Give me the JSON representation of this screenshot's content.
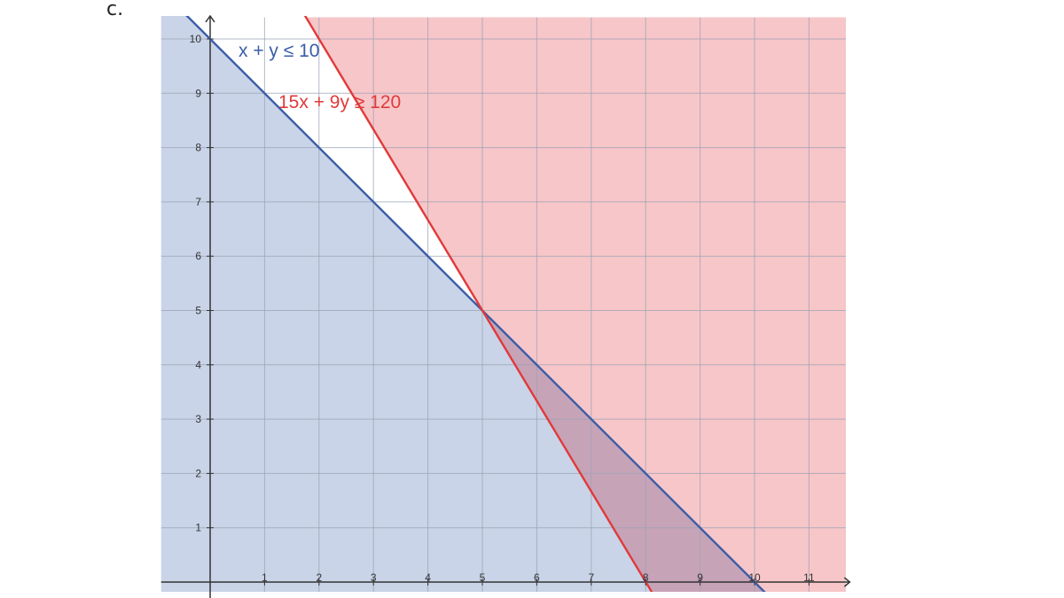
{
  "part_label": "c.",
  "chart_data": {
    "type": "line",
    "title": "",
    "xlabel": "",
    "ylabel": "",
    "xlim": [
      -0.9,
      11.7
    ],
    "ylim": [
      -0.2,
      10.4
    ],
    "x_ticks": [
      1,
      2,
      3,
      4,
      5,
      6,
      7,
      8,
      9,
      10,
      11
    ],
    "y_ticks": [
      1,
      2,
      3,
      4,
      5,
      6,
      7,
      8,
      9,
      10
    ],
    "grid": true,
    "series": [
      {
        "name": "x + y ≤ 10",
        "color": "#3a5da8",
        "fill": "#c9d4e8",
        "x": [
          -0.9,
          10.3
        ],
        "y": [
          10.9,
          -0.3
        ]
      },
      {
        "name": "15x + 9y ≥ 120",
        "color": "#e03a3a",
        "fill": "#f7c6c9",
        "x": [
          1.7,
          8.2
        ],
        "y": [
          10.5,
          -0.33
        ]
      }
    ],
    "intersection": {
      "x": 5,
      "y": 5
    },
    "colors": {
      "overlap": "#c7a3b8",
      "axis": "#333333",
      "grid": "#9aa3b5"
    }
  }
}
